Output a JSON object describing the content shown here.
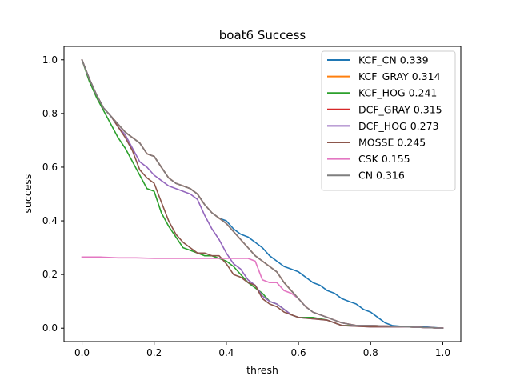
{
  "chart_data": {
    "type": "line",
    "title": "boat6 Success",
    "xlabel": "thresh",
    "ylabel": "success",
    "xlim": [
      -0.05,
      1.05
    ],
    "ylim": [
      -0.05,
      1.05
    ],
    "xticks": [
      0.0,
      0.2,
      0.4,
      0.6,
      0.8,
      1.0
    ],
    "yticks": [
      0.0,
      0.2,
      0.4,
      0.6,
      0.8,
      1.0
    ],
    "xtick_labels": [
      "0.0",
      "0.2",
      "0.4",
      "0.6",
      "0.8",
      "1.0"
    ],
    "ytick_labels": [
      "0.0",
      "0.2",
      "0.4",
      "0.6",
      "0.8",
      "1.0"
    ],
    "grid": false,
    "legend_position": "top-right",
    "series": [
      {
        "name": "KCF_CN 0.339",
        "color": "#1f77b4",
        "points": [
          [
            0,
            1.0
          ],
          [
            0.02,
            0.93
          ],
          [
            0.04,
            0.87
          ],
          [
            0.06,
            0.82
          ],
          [
            0.08,
            0.79
          ],
          [
            0.1,
            0.76
          ],
          [
            0.12,
            0.73
          ],
          [
            0.14,
            0.71
          ],
          [
            0.16,
            0.69
          ],
          [
            0.18,
            0.65
          ],
          [
            0.2,
            0.64
          ],
          [
            0.22,
            0.6
          ],
          [
            0.24,
            0.56
          ],
          [
            0.26,
            0.54
          ],
          [
            0.28,
            0.53
          ],
          [
            0.3,
            0.52
          ],
          [
            0.32,
            0.5
          ],
          [
            0.34,
            0.46
          ],
          [
            0.36,
            0.43
          ],
          [
            0.38,
            0.41
          ],
          [
            0.4,
            0.4
          ],
          [
            0.42,
            0.37
          ],
          [
            0.44,
            0.35
          ],
          [
            0.46,
            0.34
          ],
          [
            0.48,
            0.32
          ],
          [
            0.5,
            0.3
          ],
          [
            0.52,
            0.27
          ],
          [
            0.54,
            0.25
          ],
          [
            0.56,
            0.23
          ],
          [
            0.58,
            0.22
          ],
          [
            0.6,
            0.21
          ],
          [
            0.62,
            0.19
          ],
          [
            0.64,
            0.17
          ],
          [
            0.66,
            0.16
          ],
          [
            0.68,
            0.14
          ],
          [
            0.7,
            0.13
          ],
          [
            0.72,
            0.11
          ],
          [
            0.74,
            0.1
          ],
          [
            0.76,
            0.09
          ],
          [
            0.78,
            0.07
          ],
          [
            0.8,
            0.06
          ],
          [
            0.82,
            0.04
          ],
          [
            0.84,
            0.02
          ],
          [
            0.86,
            0.01
          ],
          [
            0.9,
            0.005
          ],
          [
            0.95,
            0.005
          ],
          [
            1.0,
            0.0
          ]
        ]
      },
      {
        "name": "KCF_GRAY 0.314",
        "color": "#ff7f0e",
        "points": [
          [
            0,
            1.0
          ],
          [
            0.02,
            0.93
          ],
          [
            0.04,
            0.87
          ],
          [
            0.06,
            0.82
          ],
          [
            0.08,
            0.79
          ],
          [
            0.1,
            0.76
          ],
          [
            0.12,
            0.73
          ],
          [
            0.14,
            0.71
          ],
          [
            0.16,
            0.69
          ],
          [
            0.18,
            0.65
          ],
          [
            0.2,
            0.64
          ],
          [
            0.22,
            0.6
          ],
          [
            0.24,
            0.56
          ],
          [
            0.26,
            0.54
          ],
          [
            0.28,
            0.53
          ],
          [
            0.3,
            0.52
          ],
          [
            0.32,
            0.5
          ],
          [
            0.34,
            0.46
          ],
          [
            0.36,
            0.43
          ],
          [
            0.38,
            0.41
          ],
          [
            0.4,
            0.39
          ],
          [
            0.42,
            0.36
          ],
          [
            0.44,
            0.33
          ],
          [
            0.46,
            0.3
          ],
          [
            0.48,
            0.27
          ],
          [
            0.5,
            0.25
          ],
          [
            0.52,
            0.23
          ],
          [
            0.54,
            0.21
          ],
          [
            0.56,
            0.17
          ],
          [
            0.58,
            0.14
          ],
          [
            0.6,
            0.11
          ],
          [
            0.62,
            0.08
          ],
          [
            0.64,
            0.06
          ],
          [
            0.66,
            0.05
          ],
          [
            0.68,
            0.04
          ],
          [
            0.7,
            0.03
          ],
          [
            0.72,
            0.02
          ],
          [
            0.76,
            0.01
          ],
          [
            0.8,
            0.01
          ],
          [
            0.9,
            0.005
          ],
          [
            1.0,
            0.0
          ]
        ]
      },
      {
        "name": "KCF_HOG 0.241",
        "color": "#2ca02c",
        "points": [
          [
            0,
            1.0
          ],
          [
            0.02,
            0.92
          ],
          [
            0.04,
            0.86
          ],
          [
            0.06,
            0.81
          ],
          [
            0.08,
            0.76
          ],
          [
            0.1,
            0.71
          ],
          [
            0.12,
            0.67
          ],
          [
            0.14,
            0.62
          ],
          [
            0.16,
            0.57
          ],
          [
            0.18,
            0.52
          ],
          [
            0.2,
            0.51
          ],
          [
            0.22,
            0.43
          ],
          [
            0.24,
            0.38
          ],
          [
            0.26,
            0.34
          ],
          [
            0.28,
            0.3
          ],
          [
            0.3,
            0.29
          ],
          [
            0.32,
            0.28
          ],
          [
            0.34,
            0.27
          ],
          [
            0.36,
            0.27
          ],
          [
            0.38,
            0.26
          ],
          [
            0.4,
            0.25
          ],
          [
            0.42,
            0.23
          ],
          [
            0.44,
            0.2
          ],
          [
            0.46,
            0.17
          ],
          [
            0.48,
            0.15
          ],
          [
            0.5,
            0.13
          ],
          [
            0.52,
            0.1
          ],
          [
            0.54,
            0.09
          ],
          [
            0.56,
            0.07
          ],
          [
            0.58,
            0.05
          ],
          [
            0.6,
            0.04
          ],
          [
            0.64,
            0.04
          ],
          [
            0.68,
            0.03
          ],
          [
            0.72,
            0.01
          ],
          [
            0.8,
            0.01
          ],
          [
            0.9,
            0.005
          ],
          [
            1.0,
            0.0
          ]
        ]
      },
      {
        "name": "DCF_GRAY 0.315",
        "color": "#d62728",
        "points": [
          [
            0,
            1.0
          ],
          [
            0.02,
            0.93
          ],
          [
            0.04,
            0.87
          ],
          [
            0.06,
            0.82
          ],
          [
            0.08,
            0.79
          ],
          [
            0.1,
            0.76
          ],
          [
            0.12,
            0.73
          ],
          [
            0.14,
            0.71
          ],
          [
            0.16,
            0.69
          ],
          [
            0.18,
            0.65
          ],
          [
            0.2,
            0.64
          ],
          [
            0.22,
            0.6
          ],
          [
            0.24,
            0.56
          ],
          [
            0.26,
            0.54
          ],
          [
            0.28,
            0.53
          ],
          [
            0.3,
            0.52
          ],
          [
            0.32,
            0.5
          ],
          [
            0.34,
            0.46
          ],
          [
            0.36,
            0.43
          ],
          [
            0.38,
            0.41
          ],
          [
            0.4,
            0.39
          ],
          [
            0.42,
            0.36
          ],
          [
            0.44,
            0.33
          ],
          [
            0.46,
            0.3
          ],
          [
            0.48,
            0.27
          ],
          [
            0.5,
            0.25
          ],
          [
            0.52,
            0.23
          ],
          [
            0.54,
            0.21
          ],
          [
            0.56,
            0.17
          ],
          [
            0.58,
            0.14
          ],
          [
            0.6,
            0.11
          ],
          [
            0.62,
            0.08
          ],
          [
            0.64,
            0.06
          ],
          [
            0.66,
            0.05
          ],
          [
            0.68,
            0.04
          ],
          [
            0.7,
            0.03
          ],
          [
            0.72,
            0.02
          ],
          [
            0.76,
            0.01
          ],
          [
            0.8,
            0.01
          ],
          [
            0.9,
            0.005
          ],
          [
            1.0,
            0.0
          ]
        ]
      },
      {
        "name": "DCF_HOG 0.273",
        "color": "#9467bd",
        "points": [
          [
            0,
            1.0
          ],
          [
            0.02,
            0.93
          ],
          [
            0.04,
            0.87
          ],
          [
            0.06,
            0.82
          ],
          [
            0.08,
            0.79
          ],
          [
            0.1,
            0.75
          ],
          [
            0.12,
            0.72
          ],
          [
            0.14,
            0.67
          ],
          [
            0.16,
            0.62
          ],
          [
            0.18,
            0.6
          ],
          [
            0.2,
            0.57
          ],
          [
            0.22,
            0.55
          ],
          [
            0.24,
            0.53
          ],
          [
            0.26,
            0.52
          ],
          [
            0.28,
            0.51
          ],
          [
            0.3,
            0.5
          ],
          [
            0.32,
            0.48
          ],
          [
            0.34,
            0.42
          ],
          [
            0.36,
            0.37
          ],
          [
            0.38,
            0.33
          ],
          [
            0.4,
            0.28
          ],
          [
            0.42,
            0.24
          ],
          [
            0.44,
            0.22
          ],
          [
            0.46,
            0.18
          ],
          [
            0.48,
            0.16
          ],
          [
            0.5,
            0.12
          ],
          [
            0.52,
            0.1
          ],
          [
            0.54,
            0.09
          ],
          [
            0.56,
            0.07
          ],
          [
            0.58,
            0.05
          ],
          [
            0.6,
            0.04
          ],
          [
            0.64,
            0.035
          ],
          [
            0.68,
            0.03
          ],
          [
            0.72,
            0.01
          ],
          [
            0.8,
            0.005
          ],
          [
            0.9,
            0.005
          ],
          [
            1.0,
            0.0
          ]
        ]
      },
      {
        "name": "MOSSE 0.245",
        "color": "#8c564b",
        "points": [
          [
            0,
            1.0
          ],
          [
            0.02,
            0.93
          ],
          [
            0.04,
            0.87
          ],
          [
            0.06,
            0.82
          ],
          [
            0.08,
            0.79
          ],
          [
            0.1,
            0.75
          ],
          [
            0.12,
            0.71
          ],
          [
            0.14,
            0.66
          ],
          [
            0.16,
            0.59
          ],
          [
            0.18,
            0.56
          ],
          [
            0.2,
            0.54
          ],
          [
            0.22,
            0.47
          ],
          [
            0.24,
            0.4
          ],
          [
            0.26,
            0.35
          ],
          [
            0.28,
            0.32
          ],
          [
            0.3,
            0.3
          ],
          [
            0.32,
            0.28
          ],
          [
            0.34,
            0.28
          ],
          [
            0.36,
            0.27
          ],
          [
            0.38,
            0.27
          ],
          [
            0.4,
            0.24
          ],
          [
            0.42,
            0.2
          ],
          [
            0.44,
            0.19
          ],
          [
            0.46,
            0.17
          ],
          [
            0.48,
            0.16
          ],
          [
            0.5,
            0.11
          ],
          [
            0.52,
            0.09
          ],
          [
            0.54,
            0.08
          ],
          [
            0.56,
            0.06
          ],
          [
            0.58,
            0.05
          ],
          [
            0.6,
            0.04
          ],
          [
            0.64,
            0.035
          ],
          [
            0.68,
            0.03
          ],
          [
            0.72,
            0.01
          ],
          [
            0.8,
            0.005
          ],
          [
            0.9,
            0.005
          ],
          [
            1.0,
            0.0
          ]
        ]
      },
      {
        "name": "CSK 0.155",
        "color": "#e377c2",
        "points": [
          [
            0,
            0.265
          ],
          [
            0.05,
            0.265
          ],
          [
            0.1,
            0.262
          ],
          [
            0.15,
            0.262
          ],
          [
            0.2,
            0.26
          ],
          [
            0.3,
            0.26
          ],
          [
            0.4,
            0.26
          ],
          [
            0.46,
            0.26
          ],
          [
            0.48,
            0.25
          ],
          [
            0.5,
            0.18
          ],
          [
            0.52,
            0.17
          ],
          [
            0.54,
            0.17
          ],
          [
            0.56,
            0.14
          ],
          [
            0.58,
            0.13
          ],
          [
            0.6,
            0.11
          ],
          [
            0.62,
            0.08
          ],
          [
            0.64,
            0.06
          ],
          [
            0.66,
            0.05
          ],
          [
            0.68,
            0.04
          ],
          [
            0.7,
            0.03
          ],
          [
            0.72,
            0.02
          ],
          [
            0.76,
            0.01
          ],
          [
            0.8,
            0.01
          ],
          [
            0.9,
            0.005
          ],
          [
            1.0,
            0.0
          ]
        ]
      },
      {
        "name": "CN 0.316",
        "color": "#7f7f7f",
        "points": [
          [
            0,
            1.0
          ],
          [
            0.02,
            0.93
          ],
          [
            0.04,
            0.87
          ],
          [
            0.06,
            0.82
          ],
          [
            0.08,
            0.79
          ],
          [
            0.1,
            0.76
          ],
          [
            0.12,
            0.73
          ],
          [
            0.14,
            0.71
          ],
          [
            0.16,
            0.69
          ],
          [
            0.18,
            0.65
          ],
          [
            0.2,
            0.64
          ],
          [
            0.22,
            0.6
          ],
          [
            0.24,
            0.56
          ],
          [
            0.26,
            0.54
          ],
          [
            0.28,
            0.53
          ],
          [
            0.3,
            0.52
          ],
          [
            0.32,
            0.5
          ],
          [
            0.34,
            0.46
          ],
          [
            0.36,
            0.43
          ],
          [
            0.38,
            0.41
          ],
          [
            0.4,
            0.39
          ],
          [
            0.42,
            0.36
          ],
          [
            0.44,
            0.33
          ],
          [
            0.46,
            0.3
          ],
          [
            0.48,
            0.27
          ],
          [
            0.5,
            0.25
          ],
          [
            0.52,
            0.23
          ],
          [
            0.54,
            0.21
          ],
          [
            0.56,
            0.17
          ],
          [
            0.58,
            0.14
          ],
          [
            0.6,
            0.11
          ],
          [
            0.62,
            0.08
          ],
          [
            0.64,
            0.06
          ],
          [
            0.66,
            0.05
          ],
          [
            0.68,
            0.04
          ],
          [
            0.7,
            0.03
          ],
          [
            0.72,
            0.02
          ],
          [
            0.76,
            0.01
          ],
          [
            0.8,
            0.01
          ],
          [
            0.9,
            0.005
          ],
          [
            1.0,
            0.0
          ]
        ]
      }
    ]
  }
}
